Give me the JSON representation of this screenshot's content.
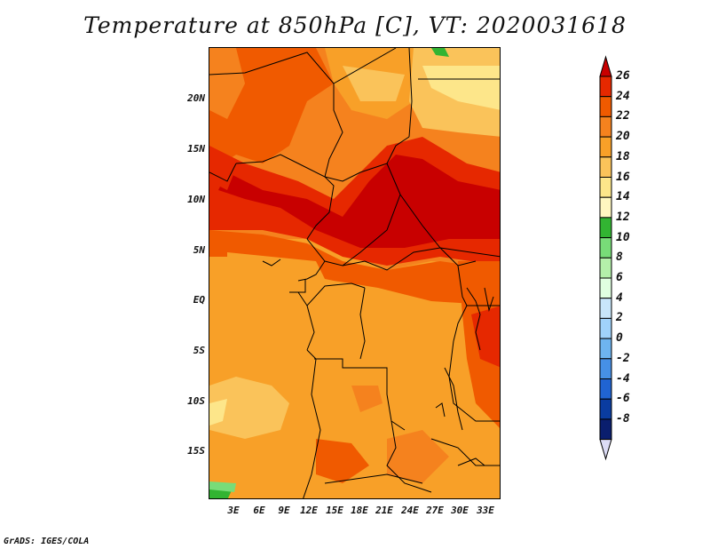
{
  "title": "Temperature at 850hPa [C], VT: 2020031618",
  "credit": "GrADS: IGES/COLA",
  "map": {
    "lat_labels": [
      "20N",
      "15N",
      "10N",
      "5N",
      "EQ",
      "5S",
      "10S",
      "15S"
    ],
    "lon_labels": [
      "3E",
      "6E",
      "9E",
      "12E",
      "15E",
      "18E",
      "21E",
      "24E",
      "27E",
      "30E",
      "33E"
    ],
    "region": "Central Africa"
  },
  "colorbar": {
    "labels": [
      "26",
      "24",
      "22",
      "20",
      "18",
      "16",
      "14",
      "12",
      "10",
      "8",
      "6",
      "4",
      "2",
      "0",
      "-2",
      "-4",
      "-6",
      "-8"
    ],
    "colors": [
      "#c80000",
      "#e62800",
      "#f05a00",
      "#f5821e",
      "#f8a028",
      "#fac35a",
      "#fde68a",
      "#fff7c0",
      "#32b432",
      "#78dc78",
      "#b4f0aa",
      "#e0ffe0",
      "#c8e6fa",
      "#a0d2fa",
      "#6eb4f0",
      "#4690e6",
      "#2064d2",
      "#0a3ca0",
      "#0a1e6e",
      "#dcdcf5"
    ]
  }
}
